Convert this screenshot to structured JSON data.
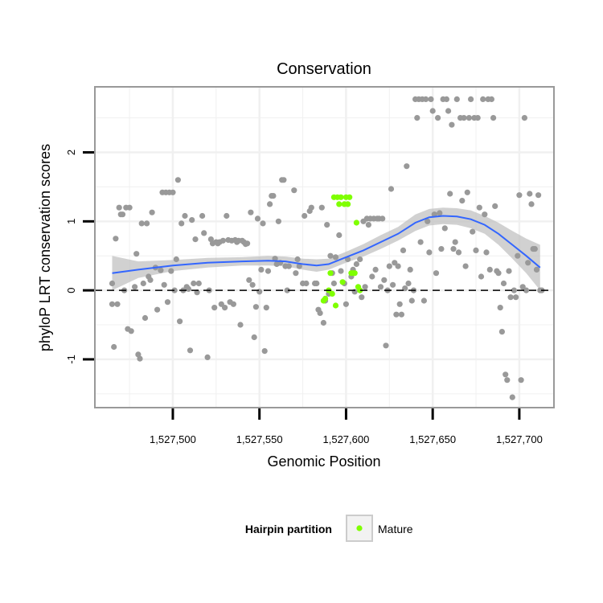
{
  "chart_data": {
    "type": "scatter",
    "title": "Conservation",
    "xlabel": "Genomic Position",
    "ylabel": "phyloP LRT conservation scores",
    "xlim": [
      1527455,
      1527720
    ],
    "ylim": [
      -1.7,
      2.95
    ],
    "x_ticks": [
      1527500,
      1527550,
      1527600,
      1527650,
      1527700
    ],
    "x_tick_labels": [
      "1,527,500",
      "1,527,550",
      "1,527,600",
      "1,527,650",
      "1,527,700"
    ],
    "y_ticks": [
      -1,
      0,
      1,
      2
    ],
    "y_tick_labels": [
      "-1",
      "0",
      "1",
      "2"
    ],
    "grid": true,
    "reference_line": {
      "y": 0,
      "style": "dashed"
    },
    "legend": {
      "title": "Hairpin partition",
      "placement": "bottom",
      "entries": [
        "Mature"
      ]
    },
    "colors": {
      "background_points": "#999999",
      "mature_points": "#7fff00",
      "smooth_line": "#3366ff",
      "ci_band": "#bdbdbd",
      "grid": "#f0f0f0",
      "panel_border": "#999999"
    },
    "series": [
      {
        "values": [
          [
            1527465,
            0.1
          ],
          [
            1527465,
            -0.2
          ],
          [
            1527466,
            -0.82
          ],
          [
            1527467,
            0.75
          ],
          [
            1527468,
            -0.2
          ],
          [
            1527469,
            1.2
          ],
          [
            1527470,
            1.1
          ],
          [
            1527471,
            1.1
          ],
          [
            1527472,
            0.0
          ],
          [
            1527473,
            1.2
          ],
          [
            1527474,
            -0.56
          ],
          [
            1527475,
            1.2
          ],
          [
            1527476,
            -0.59
          ],
          [
            1527478,
            0.05
          ],
          [
            1527479,
            0.53
          ],
          [
            1527480,
            -0.93
          ],
          [
            1527481,
            -0.99
          ],
          [
            1527482,
            0.97
          ],
          [
            1527483,
            0.1
          ],
          [
            1527484,
            -0.4
          ],
          [
            1527485,
            0.97
          ],
          [
            1527486,
            0.2
          ],
          [
            1527487,
            0.15
          ],
          [
            1527488,
            1.13
          ],
          [
            1527490,
            0.33
          ],
          [
            1527491,
            -0.28
          ],
          [
            1527493,
            0.29
          ],
          [
            1527494,
            1.42
          ],
          [
            1527495,
            0.08
          ],
          [
            1527496,
            1.42
          ],
          [
            1527497,
            -0.17
          ],
          [
            1527498,
            1.42
          ],
          [
            1527499,
            0.28
          ],
          [
            1527500,
            1.42
          ],
          [
            1527501,
            0.0
          ],
          [
            1527502,
            0.45
          ],
          [
            1527503,
            1.6
          ],
          [
            1527504,
            -0.45
          ],
          [
            1527505,
            0.97
          ],
          [
            1527506,
            0.0
          ],
          [
            1527507,
            1.08
          ],
          [
            1527508,
            0.05
          ],
          [
            1527509,
            0.02
          ],
          [
            1527510,
            -0.87
          ],
          [
            1527511,
            1.02
          ],
          [
            1527512,
            0.1
          ],
          [
            1527513,
            0.74
          ],
          [
            1527514,
            -0.03
          ],
          [
            1527515,
            0.1
          ],
          [
            1527517,
            1.08
          ],
          [
            1527518,
            0.83
          ],
          [
            1527520,
            -0.97
          ],
          [
            1527521,
            0.0
          ],
          [
            1527522,
            0.74
          ],
          [
            1527523,
            0.68
          ],
          [
            1527524,
            -0.25
          ],
          [
            1527525,
            0.7
          ],
          [
            1527526,
            0.68
          ],
          [
            1527527,
            0.7
          ],
          [
            1527528,
            -0.2
          ],
          [
            1527529,
            0.72
          ],
          [
            1527530,
            -0.25
          ],
          [
            1527531,
            1.08
          ],
          [
            1527532,
            0.73
          ],
          [
            1527533,
            -0.17
          ],
          [
            1527534,
            0.72
          ],
          [
            1527535,
            -0.2
          ],
          [
            1527536,
            0.73
          ],
          [
            1527537,
            0.7
          ],
          [
            1527538,
            0.72
          ],
          [
            1527539,
            -0.5
          ],
          [
            1527540,
            0.72
          ],
          [
            1527541,
            0.7
          ],
          [
            1527542,
            0.67
          ],
          [
            1527543,
            0.68
          ],
          [
            1527544,
            0.15
          ],
          [
            1527545,
            1.13
          ],
          [
            1527546,
            0.08
          ],
          [
            1527547,
            -0.68
          ],
          [
            1527548,
            -0.24
          ],
          [
            1527549,
            1.04
          ],
          [
            1527550,
            -0.02
          ],
          [
            1527551,
            0.3
          ],
          [
            1527552,
            0.97
          ],
          [
            1527553,
            -0.88
          ],
          [
            1527554,
            -0.25
          ],
          [
            1527555,
            0.28
          ],
          [
            1527556,
            1.25
          ],
          [
            1527557,
            1.37
          ],
          [
            1527558,
            1.37
          ],
          [
            1527559,
            0.46
          ],
          [
            1527560,
            0.38
          ],
          [
            1527561,
            1.0
          ],
          [
            1527562,
            0.4
          ],
          [
            1527563,
            1.6
          ],
          [
            1527564,
            1.6
          ],
          [
            1527565,
            0.35
          ],
          [
            1527566,
            0.0
          ],
          [
            1527567,
            0.35
          ],
          [
            1527570,
            1.45
          ],
          [
            1527571,
            0.25
          ],
          [
            1527572,
            0.45
          ],
          [
            1527573,
            0.35
          ],
          [
            1527575,
            0.1
          ],
          [
            1527576,
            1.08
          ],
          [
            1527577,
            0.1
          ],
          [
            1527579,
            1.15
          ],
          [
            1527580,
            1.2
          ],
          [
            1527582,
            0.1
          ],
          [
            1527583,
            0.1
          ],
          [
            1527584,
            -0.28
          ],
          [
            1527585,
            -0.33
          ],
          [
            1527586,
            1.2
          ],
          [
            1527587,
            -0.47
          ],
          [
            1527588,
            -0.15
          ],
          [
            1527589,
            0.95
          ],
          [
            1527590,
            -0.05
          ],
          [
            1527591,
            0.5
          ],
          [
            1527592,
            0.25
          ],
          [
            1527593,
            0.1
          ],
          [
            1527594,
            0.48
          ],
          [
            1527596,
            0.8
          ],
          [
            1527597,
            0.28
          ],
          [
            1527599,
            0.1
          ],
          [
            1527600,
            -0.2
          ],
          [
            1527601,
            0.45
          ],
          [
            1527603,
            0.2
          ],
          [
            1527604,
            0.3
          ],
          [
            1527605,
            -0.02
          ],
          [
            1527606,
            0.38
          ],
          [
            1527608,
            0.45
          ],
          [
            1527609,
            -0.1
          ],
          [
            1527610,
            1.0
          ],
          [
            1527611,
            0.05
          ],
          [
            1527612,
            1.04
          ],
          [
            1527613,
            0.95
          ],
          [
            1527614,
            1.04
          ],
          [
            1527615,
            0.2
          ],
          [
            1527616,
            1.04
          ],
          [
            1527617,
            0.3
          ],
          [
            1527618,
            1.04
          ],
          [
            1527619,
            1.04
          ],
          [
            1527620,
            0.05
          ],
          [
            1527621,
            1.04
          ],
          [
            1527622,
            0.15
          ],
          [
            1527623,
            -0.8
          ],
          [
            1527624,
            0.0
          ],
          [
            1527625,
            0.35
          ],
          [
            1527626,
            1.47
          ],
          [
            1527627,
            0.08
          ],
          [
            1527628,
            0.4
          ],
          [
            1527629,
            -0.35
          ],
          [
            1527630,
            0.35
          ],
          [
            1527631,
            -0.2
          ],
          [
            1527632,
            -0.35
          ],
          [
            1527633,
            0.58
          ],
          [
            1527634,
            0.03
          ],
          [
            1527635,
            1.8
          ],
          [
            1527636,
            0.1
          ],
          [
            1527637,
            0.3
          ],
          [
            1527638,
            -0.15
          ],
          [
            1527639,
            0.0
          ],
          [
            1527640,
            2.77
          ],
          [
            1527641,
            2.5
          ],
          [
            1527642,
            2.77
          ],
          [
            1527643,
            0.7
          ],
          [
            1527644,
            2.77
          ],
          [
            1527645,
            -0.15
          ],
          [
            1527646,
            2.77
          ],
          [
            1527647,
            1.0
          ],
          [
            1527648,
            0.55
          ],
          [
            1527649,
            2.77
          ],
          [
            1527650,
            2.6
          ],
          [
            1527651,
            1.1
          ],
          [
            1527652,
            0.25
          ],
          [
            1527653,
            2.5
          ],
          [
            1527654,
            1.12
          ],
          [
            1527655,
            0.6
          ],
          [
            1527656,
            2.77
          ],
          [
            1527657,
            0.9
          ],
          [
            1527658,
            2.77
          ],
          [
            1527659,
            2.6
          ],
          [
            1527660,
            1.4
          ],
          [
            1527661,
            2.4
          ],
          [
            1527662,
            0.6
          ],
          [
            1527663,
            0.7
          ],
          [
            1527664,
            2.77
          ],
          [
            1527665,
            0.55
          ],
          [
            1527666,
            2.5
          ],
          [
            1527667,
            1.3
          ],
          [
            1527668,
            2.5
          ],
          [
            1527669,
            0.35
          ],
          [
            1527670,
            1.42
          ],
          [
            1527671,
            2.5
          ],
          [
            1527672,
            2.77
          ],
          [
            1527673,
            0.85
          ],
          [
            1527674,
            2.5
          ],
          [
            1527675,
            0.58
          ],
          [
            1527676,
            2.5
          ],
          [
            1527677,
            1.2
          ],
          [
            1527678,
            0.2
          ],
          [
            1527679,
            2.77
          ],
          [
            1527680,
            1.1
          ],
          [
            1527681,
            0.55
          ],
          [
            1527682,
            2.77
          ],
          [
            1527683,
            0.3
          ],
          [
            1527684,
            2.77
          ],
          [
            1527685,
            2.5
          ],
          [
            1527686,
            1.22
          ],
          [
            1527687,
            0.28
          ],
          [
            1527688,
            0.25
          ],
          [
            1527689,
            -0.25
          ],
          [
            1527690,
            -0.6
          ],
          [
            1527691,
            0.1
          ],
          [
            1527692,
            -1.22
          ],
          [
            1527693,
            -1.3
          ],
          [
            1527694,
            0.28
          ],
          [
            1527695,
            -0.1
          ],
          [
            1527696,
            -1.55
          ],
          [
            1527697,
            0.0
          ],
          [
            1527698,
            -0.1
          ],
          [
            1527699,
            0.5
          ],
          [
            1527700,
            1.38
          ],
          [
            1527701,
            -1.3
          ],
          [
            1527702,
            0.05
          ],
          [
            1527703,
            2.5
          ],
          [
            1527704,
            0.0
          ],
          [
            1527705,
            0.4
          ],
          [
            1527706,
            1.4
          ],
          [
            1527707,
            1.25
          ],
          [
            1527708,
            0.6
          ],
          [
            1527709,
            0.6
          ],
          [
            1527710,
            0.3
          ],
          [
            1527711,
            1.38
          ],
          [
            1527712,
            0.0
          ],
          [
            1527713,
            0.0
          ]
        ]
      },
      {
        "name": "Mature",
        "values": [
          [
            1527587,
            -0.15
          ],
          [
            1527588,
            -0.12
          ],
          [
            1527590,
            0.0
          ],
          [
            1527591,
            0.25
          ],
          [
            1527592,
            -0.05
          ],
          [
            1527593,
            1.35
          ],
          [
            1527594,
            -0.22
          ],
          [
            1527595,
            1.35
          ],
          [
            1527596,
            1.25
          ],
          [
            1527597,
            1.35
          ],
          [
            1527598,
            0.12
          ],
          [
            1527599,
            1.25
          ],
          [
            1527600,
            1.35
          ],
          [
            1527601,
            1.25
          ],
          [
            1527602,
            1.35
          ],
          [
            1527603,
            0.25
          ],
          [
            1527604,
            0.25
          ],
          [
            1527605,
            0.25
          ],
          [
            1527606,
            0.98
          ],
          [
            1527607,
            0.05
          ],
          [
            1527608,
            0.0
          ]
        ]
      }
    ],
    "smooth": {
      "x": [
        1527465,
        1527480,
        1527500,
        1527520,
        1527540,
        1527555,
        1527565,
        1527575,
        1527583,
        1527590,
        1527600,
        1527610,
        1527620,
        1527630,
        1527640,
        1527648,
        1527656,
        1527664,
        1527672,
        1527680,
        1527688,
        1527696,
        1527704,
        1527712
      ],
      "y": [
        0.25,
        0.3,
        0.36,
        0.4,
        0.42,
        0.43,
        0.42,
        0.38,
        0.36,
        0.38,
        0.48,
        0.58,
        0.7,
        0.82,
        0.98,
        1.06,
        1.08,
        1.07,
        1.03,
        0.95,
        0.82,
        0.66,
        0.5,
        0.33
      ],
      "lower": [
        0.0,
        0.18,
        0.28,
        0.33,
        0.36,
        0.36,
        0.35,
        0.3,
        0.27,
        0.3,
        0.4,
        0.49,
        0.6,
        0.72,
        0.86,
        0.94,
        0.96,
        0.95,
        0.9,
        0.82,
        0.66,
        0.46,
        0.25,
        0.0
      ],
      "upper": [
        0.5,
        0.42,
        0.44,
        0.47,
        0.48,
        0.5,
        0.49,
        0.46,
        0.45,
        0.46,
        0.56,
        0.67,
        0.8,
        0.92,
        1.1,
        1.18,
        1.2,
        1.19,
        1.16,
        1.08,
        0.98,
        0.86,
        0.75,
        0.66
      ]
    }
  }
}
